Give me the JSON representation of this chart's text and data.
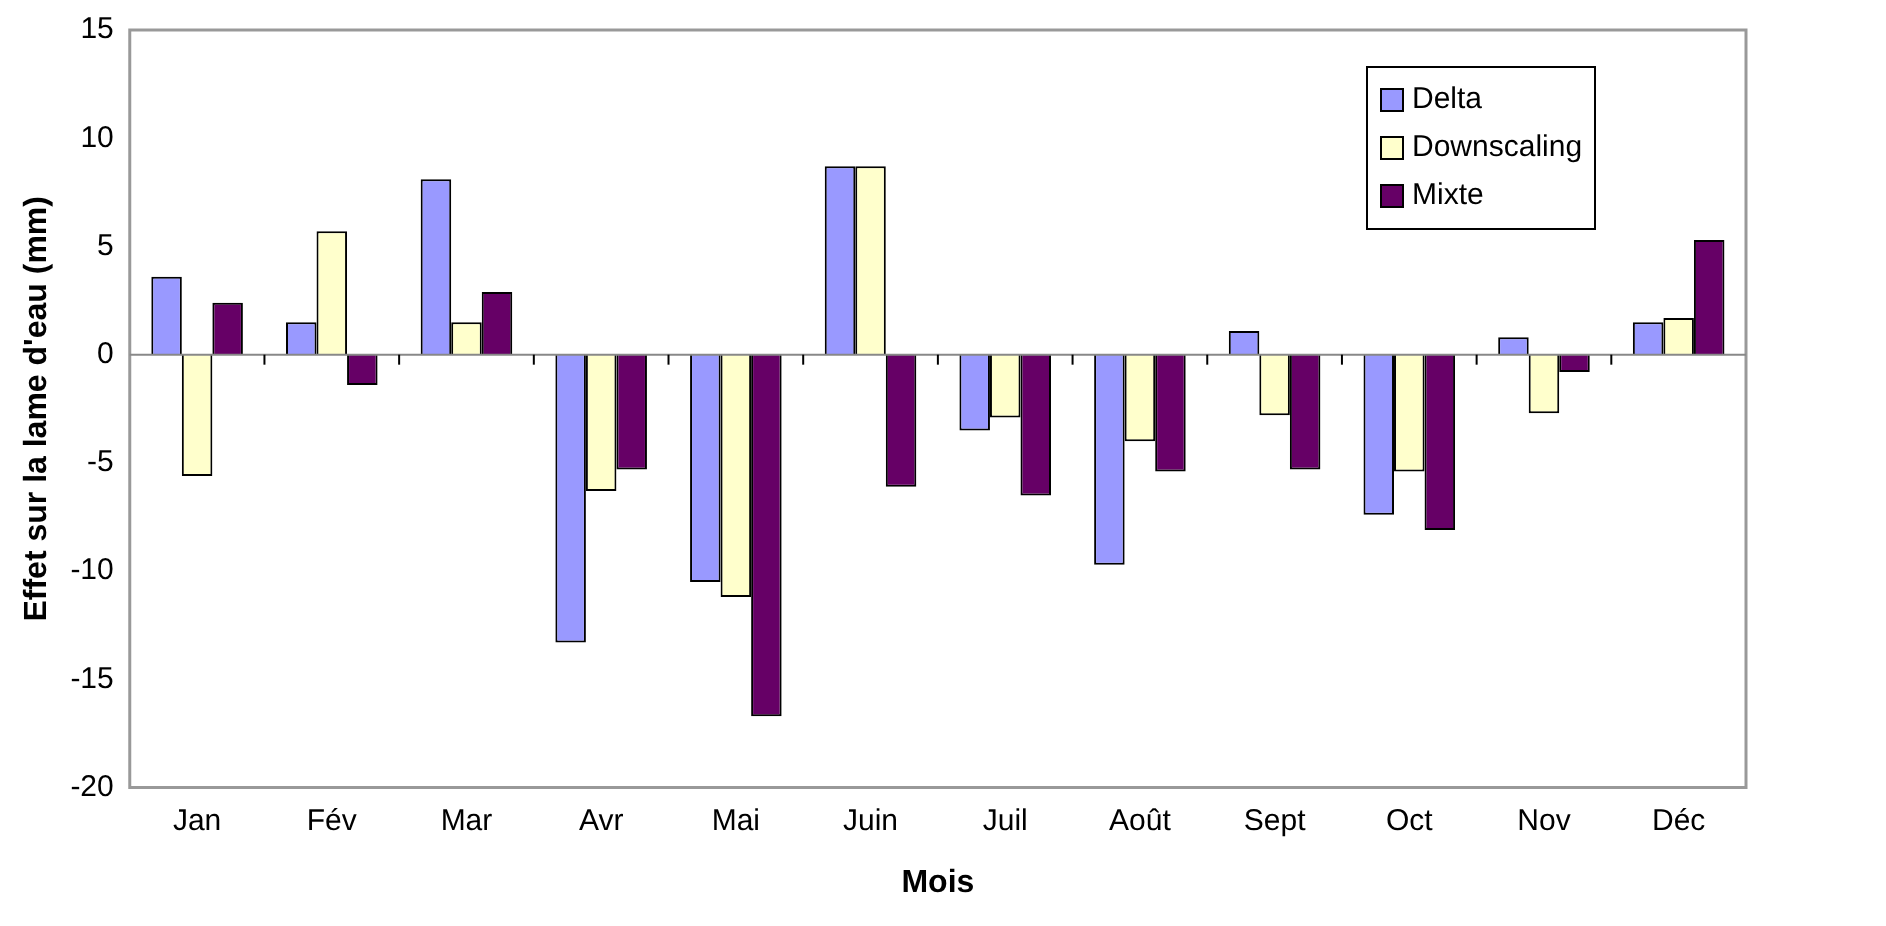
{
  "chart_data": {
    "type": "bar",
    "xlabel": "Mois",
    "ylabel": "Effet sur la lame d'eau (mm)",
    "categories": [
      "Jan",
      "Fév",
      "Mar",
      "Avr",
      "Mai",
      "Juin",
      "Juil",
      "Août",
      "Sept",
      "Oct",
      "Nov",
      "Déc"
    ],
    "series": [
      {
        "name": "Delta",
        "color": "#9999ff",
        "values": [
          3.6,
          1.5,
          8.1,
          -13.3,
          -10.5,
          8.7,
          -3.5,
          -9.7,
          1.1,
          -7.4,
          0.8,
          1.5
        ]
      },
      {
        "name": "Downscaling",
        "color": "#ffffcc",
        "values": [
          -5.6,
          5.7,
          1.5,
          -6.3,
          -11.2,
          8.7,
          -2.9,
          -4.0,
          -2.8,
          -5.4,
          -2.7,
          1.7
        ]
      },
      {
        "name": "Mixte",
        "color": "#660066",
        "values": [
          2.4,
          -1.4,
          2.9,
          -5.3,
          -16.7,
          -6.1,
          -6.5,
          -5.4,
          -5.3,
          -8.1,
          -0.8,
          5.3
        ]
      }
    ],
    "ylim": [
      -20,
      15
    ],
    "yticks": [
      -20,
      -15,
      -10,
      -5,
      0,
      5,
      10,
      15
    ],
    "legend": "top right"
  }
}
